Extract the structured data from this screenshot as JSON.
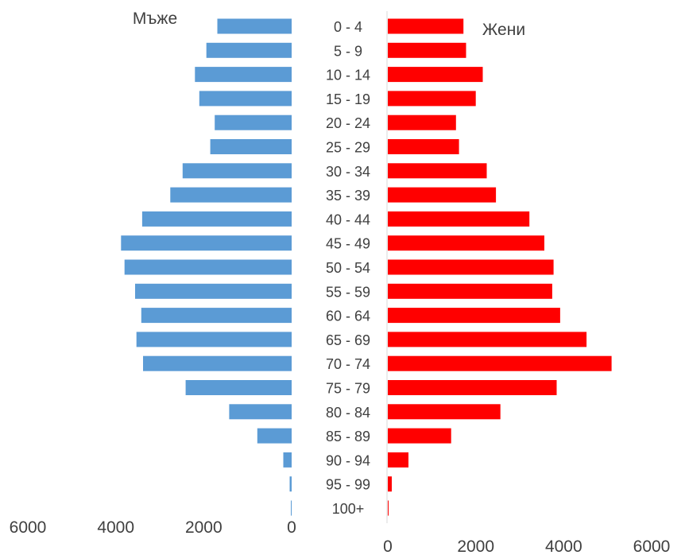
{
  "chart_data": {
    "type": "bar",
    "subtype": "population-pyramid",
    "categories": [
      "0 - 4",
      "5 -  9",
      "10 - 14",
      "15 - 19",
      "20 - 24",
      "25 - 29",
      "30 - 34",
      "35 - 39",
      "40 - 44",
      "45 - 49",
      "50 - 54",
      "55 - 59",
      "60 - 64",
      "65 - 69",
      "70 - 74",
      "75 - 79",
      "80 - 84",
      "85 - 89",
      "90 - 94",
      "95 - 99",
      "100+"
    ],
    "series": [
      {
        "name": "Мъже",
        "side": "left",
        "color": "#5b9bd5",
        "values": [
          1690,
          1940,
          2200,
          2100,
          1750,
          1850,
          2480,
          2760,
          3400,
          3880,
          3800,
          3560,
          3420,
          3530,
          3380,
          2410,
          1420,
          780,
          190,
          45,
          15
        ]
      },
      {
        "name": "Жени",
        "side": "right",
        "color": "#ff0000",
        "values": [
          1720,
          1780,
          2160,
          2000,
          1550,
          1620,
          2250,
          2460,
          3220,
          3560,
          3770,
          3740,
          3920,
          4520,
          5090,
          3840,
          2560,
          1440,
          470,
          90,
          15
        ]
      }
    ],
    "left_axis": {
      "ticks": [
        "6000",
        "4000",
        "2000",
        "0"
      ],
      "range": [
        6000,
        0
      ]
    },
    "right_axis": {
      "ticks": [
        "0",
        "2000",
        "4000",
        "6000"
      ],
      "range": [
        0,
        6000
      ]
    },
    "legend": "inline labels at top-left and top-right"
  }
}
